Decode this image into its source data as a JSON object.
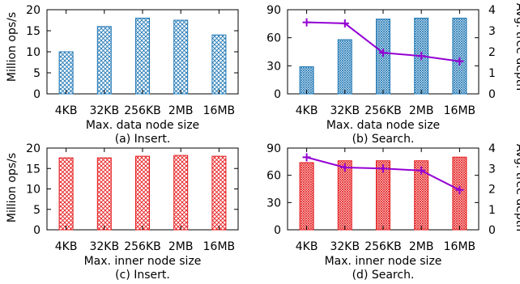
{
  "chart_data": [
    {
      "type": "bar",
      "caption": "(a) Insert.",
      "categories": [
        "4KB",
        "32KB",
        "256KB",
        "2MB",
        "16MB"
      ],
      "values": [
        10,
        16,
        18,
        17.5,
        14
      ],
      "xlabel": "Max. data node size",
      "ylabel": "Million ops/s",
      "ylim": [
        0,
        20
      ],
      "yticks": [
        "0",
        "5",
        "10",
        "15",
        "20"
      ],
      "grid": false,
      "bar_color": "#1f77b4",
      "bar_pattern": "crosshatch"
    },
    {
      "type": "bar+line",
      "caption": "(b) Search.",
      "categories": [
        "4KB",
        "32KB",
        "256KB",
        "2MB",
        "16MB"
      ],
      "values": [
        29,
        58,
        80,
        81,
        81
      ],
      "line_values": [
        3.4,
        3.35,
        1.95,
        1.8,
        1.55
      ],
      "xlabel": "Max. data node size",
      "ylabel": "",
      "y2label": "Avg. tree depth",
      "ylim": [
        0,
        90
      ],
      "yticks": [
        "0",
        "30",
        "60",
        "90"
      ],
      "y2lim": [
        0,
        4
      ],
      "y2ticks": [
        "0",
        "1",
        "2",
        "3",
        "4"
      ],
      "grid": false,
      "bar_color": "#1f77b4",
      "bar_pattern": "dense",
      "line_color": "#9400d3",
      "marker": "plus"
    },
    {
      "type": "bar",
      "caption": "(c) Insert.",
      "categories": [
        "4KB",
        "32KB",
        "256KB",
        "2MB",
        "16MB"
      ],
      "values": [
        17.6,
        17.6,
        18,
        18.2,
        18
      ],
      "xlabel": "Max. inner node size",
      "ylabel": "Million ops/s",
      "ylim": [
        0,
        20
      ],
      "yticks": [
        "0",
        "5",
        "10",
        "15",
        "20"
      ],
      "grid": false,
      "bar_color": "#e41a1c",
      "bar_pattern": "crosshatch"
    },
    {
      "type": "bar+line",
      "caption": "(d) Search.",
      "categories": [
        "4KB",
        "32KB",
        "256KB",
        "2MB",
        "16MB"
      ],
      "values": [
        74,
        76,
        76,
        76,
        80
      ],
      "line_values": [
        3.55,
        3.05,
        3.0,
        2.9,
        1.95
      ],
      "xlabel": "Max. inner node size",
      "ylabel": "",
      "y2label": "Avg. tree depth",
      "ylim": [
        0,
        90
      ],
      "yticks": [
        "0",
        "30",
        "60",
        "90"
      ],
      "y2lim": [
        0,
        4
      ],
      "y2ticks": [
        "0",
        "1",
        "2",
        "3",
        "4"
      ],
      "grid": false,
      "bar_color": "#e41a1c",
      "bar_pattern": "dense",
      "line_color": "#9400d3",
      "marker": "plus"
    }
  ]
}
